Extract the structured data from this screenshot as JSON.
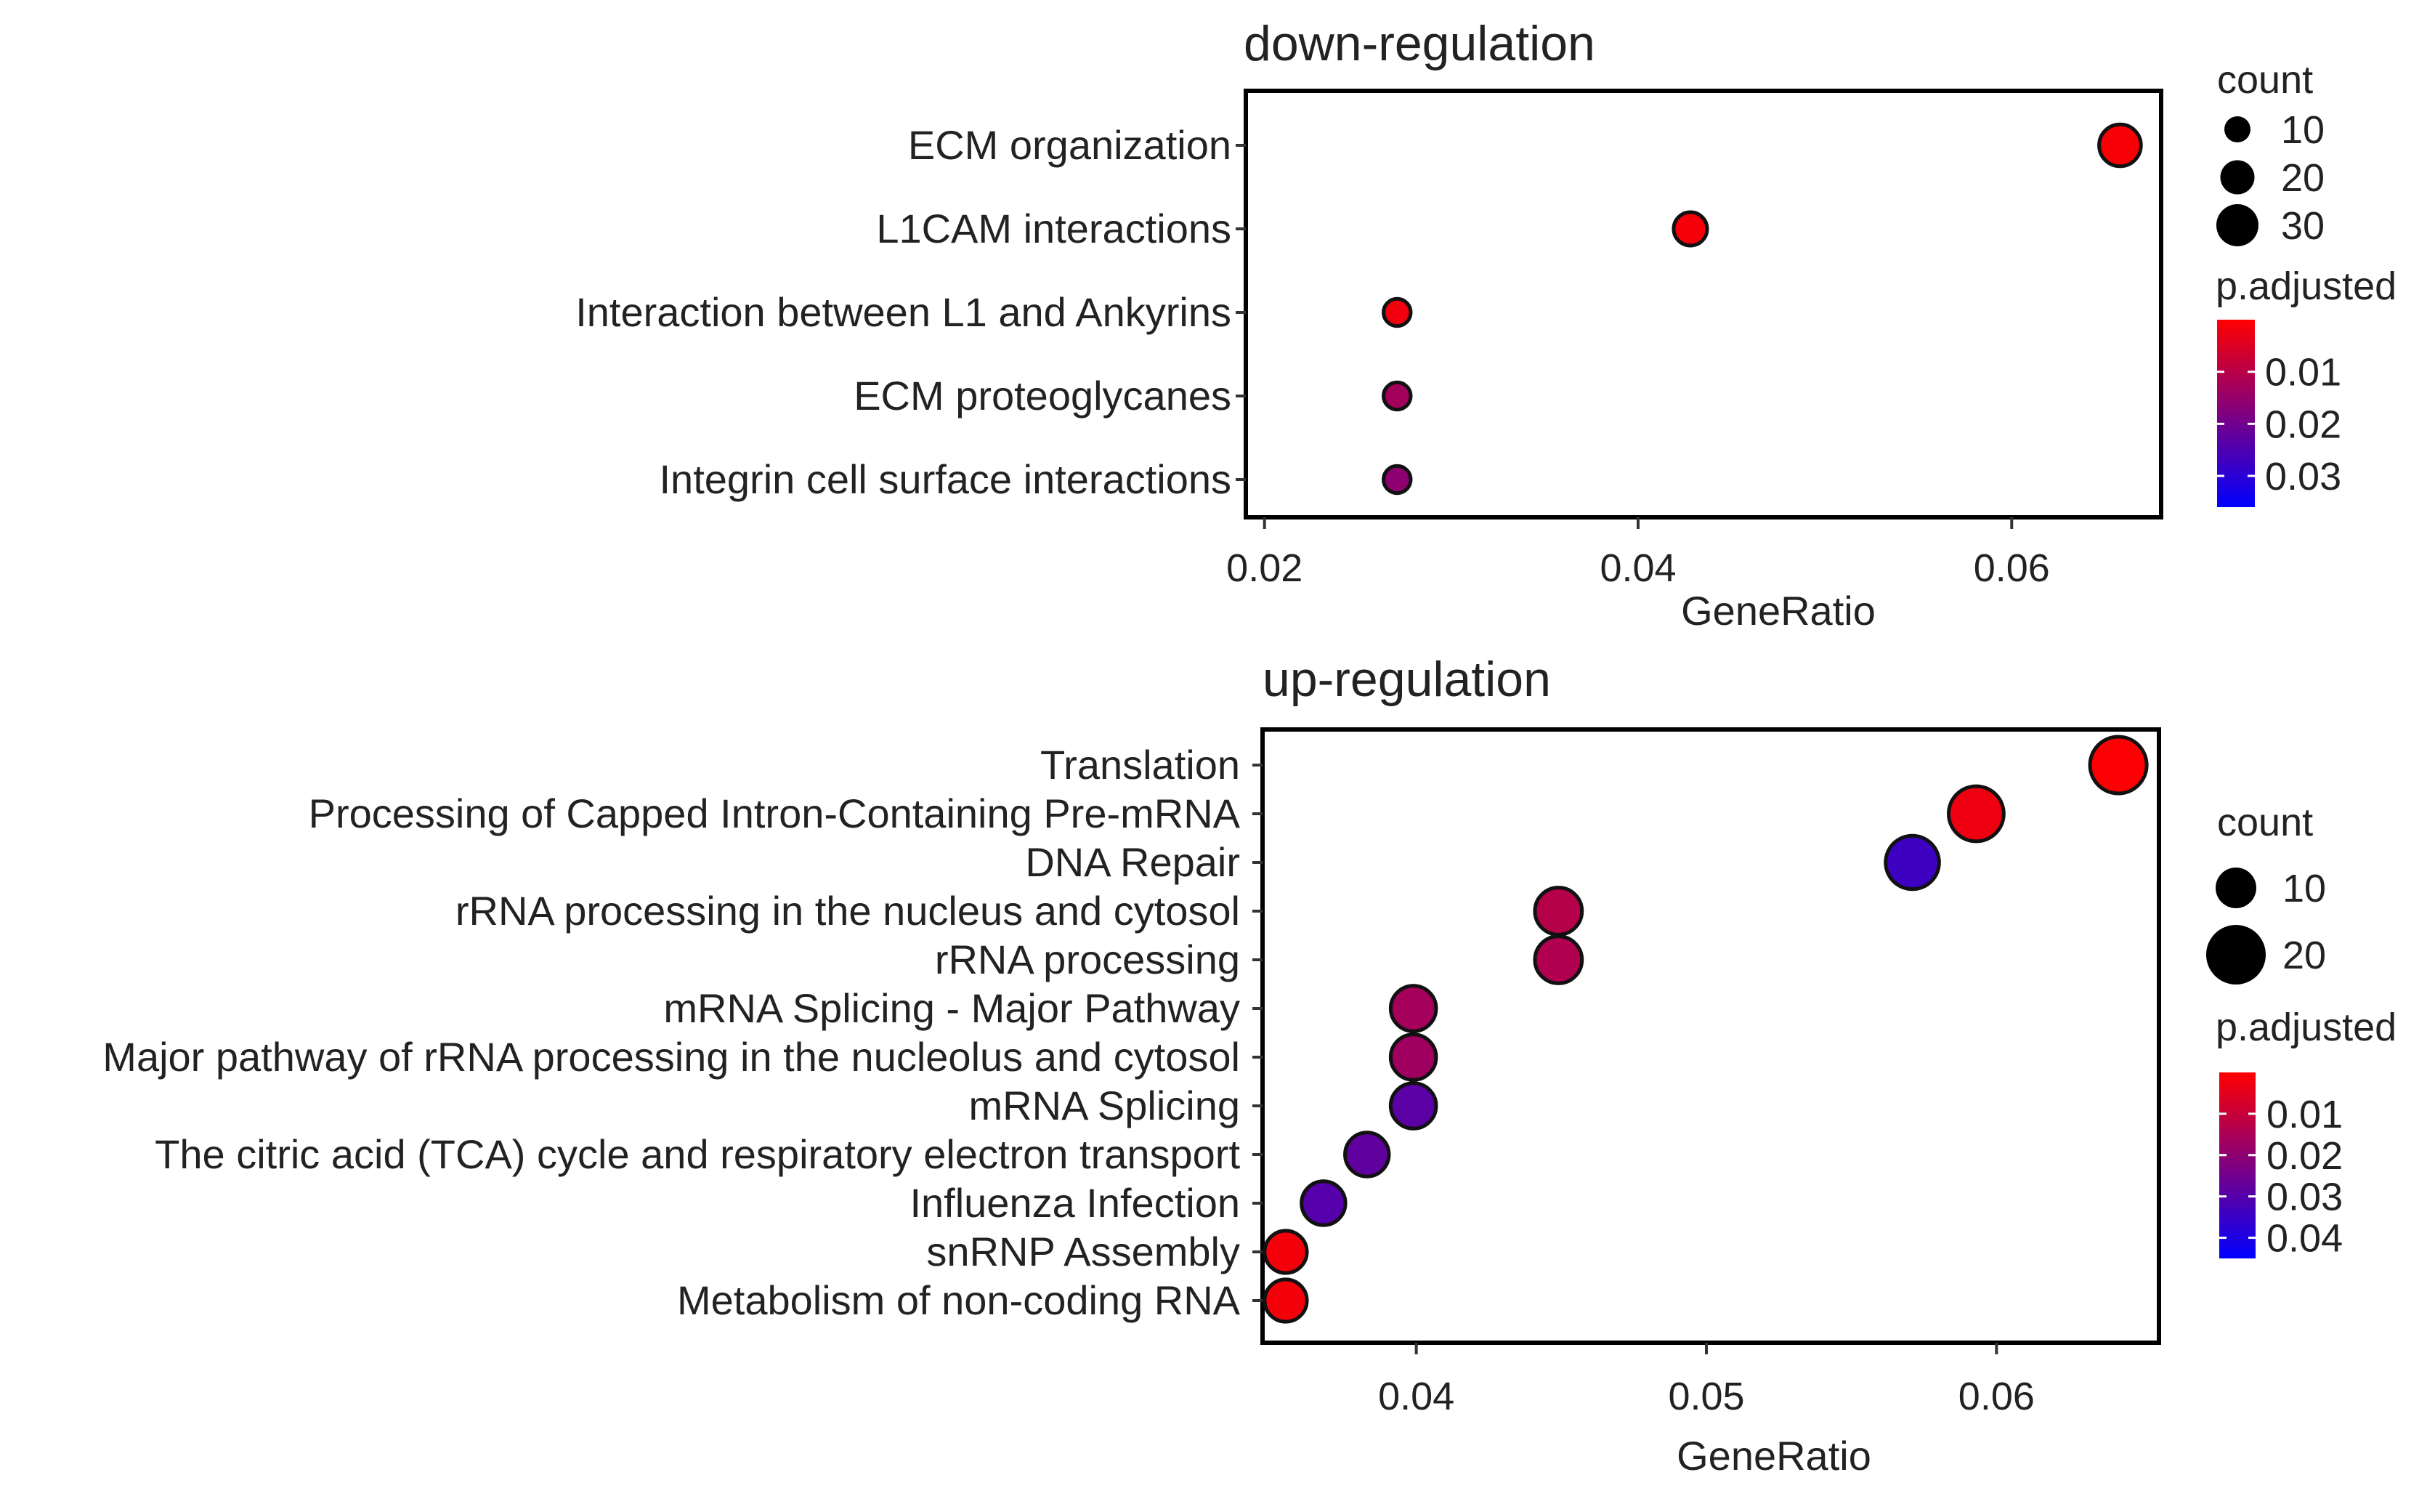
{
  "chart_data": [
    {
      "type": "scatter",
      "title": "down-regulation",
      "xlabel": "GeneRatio",
      "ylabel": "",
      "xlim": [
        0.019,
        0.068
      ],
      "xticks": [
        {
          "value": 0.02,
          "label": "0.02"
        },
        {
          "value": 0.04,
          "label": "0.04"
        },
        {
          "value": 0.06,
          "label": "0.06"
        }
      ],
      "categories": [
        "ECM organization",
        "L1CAM interactions",
        "Interaction between L1 and Ankyrins",
        "ECM proteoglycanes",
        "Integrin cell surface interactions"
      ],
      "points": [
        {
          "category": "ECM organization",
          "x": 0.0658,
          "count": 25,
          "p_adjusted": 0.0008
        },
        {
          "category": "L1CAM interactions",
          "x": 0.0428,
          "count": 17,
          "p_adjusted": 0.0012
        },
        {
          "category": "Interaction between L1 and Ankyrins",
          "x": 0.0271,
          "count": 11,
          "p_adjusted": 0.002
        },
        {
          "category": "ECM proteoglycanes",
          "x": 0.0271,
          "count": 11,
          "p_adjusted": 0.013
        },
        {
          "category": "Integrin cell surface interactions",
          "x": 0.0271,
          "count": 11,
          "p_adjusted": 0.016
        }
      ],
      "legend": {
        "size": {
          "title": "count",
          "entries": [
            {
              "value": 10,
              "label": "10"
            },
            {
              "value": 20,
              "label": "20"
            },
            {
              "value": 30,
              "label": "30"
            }
          ]
        },
        "color": {
          "title": "p.adjusted",
          "range": [
            0,
            0.036
          ],
          "ticks": [
            {
              "value": 0.01,
              "label": "0.01"
            },
            {
              "value": 0.02,
              "label": "0.02"
            },
            {
              "value": 0.03,
              "label": "0.03"
            }
          ],
          "low_color": "#ff0000",
          "high_color": "#0000ff"
        }
      }
    },
    {
      "type": "scatter",
      "title": "up-regulation",
      "xlabel": "GeneRatio",
      "ylabel": "",
      "xlim": [
        0.0347,
        0.0656
      ],
      "xticks": [
        {
          "value": 0.04,
          "label": "0.04"
        },
        {
          "value": 0.05,
          "label": "0.05"
        },
        {
          "value": 0.06,
          "label": "0.06"
        }
      ],
      "categories": [
        "Translation",
        "Processing of Capped Intron-Containing Pre-mRNA",
        "DNA Repair",
        "rRNA processing in the nucleus and cytosol",
        "rRNA processing",
        "mRNA Splicing - Major Pathway",
        "Major pathway of rRNA processing in the nucleolus and cytosol",
        "mRNA Splicing",
        "The citric acid (TCA) cycle and respiratory electron transport",
        "Influenza Infection",
        "snRNP Assembly",
        "Metabolism of non-coding RNA"
      ],
      "points": [
        {
          "category": "Translation",
          "x": 0.0642,
          "count": 20,
          "p_adjusted": 0.0005
        },
        {
          "category": "Processing of Capped Intron-Containing Pre-mRNA",
          "x": 0.0593,
          "count": 19,
          "p_adjusted": 0.003
        },
        {
          "category": "DNA Repair",
          "x": 0.0571,
          "count": 18,
          "p_adjusted": 0.034
        },
        {
          "category": "rRNA processing in the nucleus and cytosol",
          "x": 0.0449,
          "count": 14,
          "p_adjusted": 0.013
        },
        {
          "category": "rRNA processing",
          "x": 0.0449,
          "count": 14,
          "p_adjusted": 0.014
        },
        {
          "category": "mRNA Splicing - Major Pathway",
          "x": 0.0399,
          "count": 13,
          "p_adjusted": 0.016
        },
        {
          "category": "Major pathway of rRNA processing in the nucleolus and cytosol",
          "x": 0.0399,
          "count": 13,
          "p_adjusted": 0.017
        },
        {
          "category": "mRNA Splicing",
          "x": 0.0399,
          "count": 13,
          "p_adjusted": 0.029
        },
        {
          "category": "The citric acid (TCA) cycle and respiratory electron transport",
          "x": 0.0383,
          "count": 12,
          "p_adjusted": 0.028
        },
        {
          "category": "Influenza Infection",
          "x": 0.0368,
          "count": 12,
          "p_adjusted": 0.03
        },
        {
          "category": "snRNP Assembly",
          "x": 0.0355,
          "count": 11,
          "p_adjusted": 0.002
        },
        {
          "category": "Metabolism of non-coding RNA",
          "x": 0.0355,
          "count": 11,
          "p_adjusted": 0.002
        }
      ],
      "legend": {
        "size": {
          "title": "count",
          "entries": [
            {
              "value": 10,
              "label": "10"
            },
            {
              "value": 20,
              "label": "20"
            }
          ]
        },
        "color": {
          "title": "p.adjusted",
          "range": [
            0,
            0.045
          ],
          "ticks": [
            {
              "value": 0.01,
              "label": "0.01"
            },
            {
              "value": 0.02,
              "label": "0.02"
            },
            {
              "value": 0.03,
              "label": "0.03"
            },
            {
              "value": 0.04,
              "label": "0.04"
            }
          ],
          "low_color": "#ff0000",
          "high_color": "#0000ff"
        }
      }
    }
  ]
}
